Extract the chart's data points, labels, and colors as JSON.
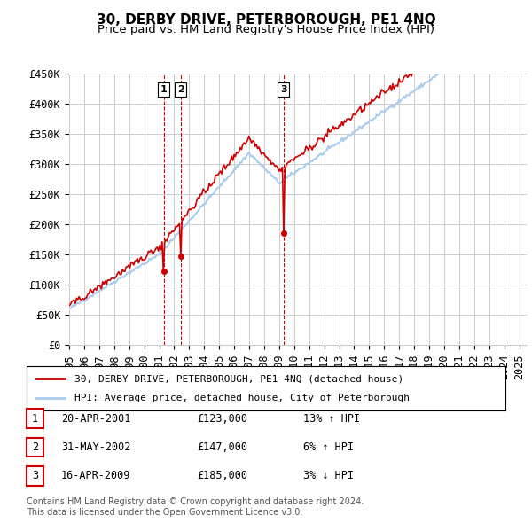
{
  "title": "30, DERBY DRIVE, PETERBOROUGH, PE1 4NQ",
  "subtitle": "Price paid vs. HM Land Registry's House Price Index (HPI)",
  "ylabel_ticks": [
    "£0",
    "£50K",
    "£100K",
    "£150K",
    "£200K",
    "£250K",
    "£300K",
    "£350K",
    "£400K",
    "£450K"
  ],
  "ytick_values": [
    0,
    50000,
    100000,
    150000,
    200000,
    250000,
    300000,
    350000,
    400000,
    450000
  ],
  "ylim": [
    0,
    450000
  ],
  "xlim_start": 1995.0,
  "xlim_end": 2025.5,
  "background_color": "#ffffff",
  "grid_color": "#cccccc",
  "sale_color": "#cc0000",
  "hpi_color": "#aaccee",
  "purchases": [
    {
      "date_num": 2001.3,
      "price": 123000,
      "label": "1"
    },
    {
      "date_num": 2002.42,
      "price": 147000,
      "label": "2"
    },
    {
      "date_num": 2009.29,
      "price": 185000,
      "label": "3"
    }
  ],
  "legend_sale_label": "30, DERBY DRIVE, PETERBOROUGH, PE1 4NQ (detached house)",
  "legend_hpi_label": "HPI: Average price, detached house, City of Peterborough",
  "table_rows": [
    {
      "num": "1",
      "date": "20-APR-2001",
      "price": "£123,000",
      "hpi": "13% ↑ HPI"
    },
    {
      "num": "2",
      "date": "31-MAY-2002",
      "price": "£147,000",
      "hpi": "6% ↑ HPI"
    },
    {
      "num": "3",
      "date": "16-APR-2009",
      "price": "£185,000",
      "hpi": "3% ↓ HPI"
    }
  ],
  "footnote": "Contains HM Land Registry data © Crown copyright and database right 2024.\nThis data is licensed under the Open Government Licence v3.0.",
  "title_fontsize": 11,
  "subtitle_fontsize": 9.5,
  "tick_fontsize": 8.5,
  "legend_fontsize": 8,
  "table_fontsize": 8.5,
  "footnote_fontsize": 7
}
